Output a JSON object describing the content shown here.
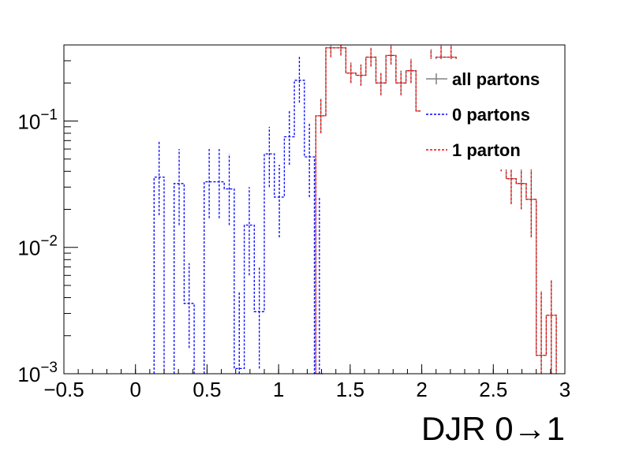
{
  "chart_data": {
    "type": "histogram-step",
    "xlabel": "DJR 0→1",
    "ylabel": "",
    "xlim": [
      -0.5,
      3.0
    ],
    "ylim": [
      0.001,
      0.4
    ],
    "yscale": "log",
    "xticks": [
      "−0.5",
      "0",
      "0.5",
      "1",
      "1.5",
      "2",
      "2.5",
      "3"
    ],
    "xtick_values": [
      -0.5,
      0,
      0.5,
      1,
      1.5,
      2,
      2.5,
      3
    ],
    "yticks": [
      {
        "value": 0.1,
        "base": "10",
        "exp": "−1"
      },
      {
        "value": 0.01,
        "base": "10",
        "exp": "−2"
      },
      {
        "value": 0.001,
        "base": "10",
        "exp": "−3"
      }
    ],
    "legend_position": "top-right",
    "bin_width": 0.07,
    "series": [
      {
        "name": "all partons",
        "color": "#808080",
        "dash": "",
        "bins": [
          [
            1.26,
            1.33,
            0.11,
            0.08,
            0.15
          ],
          [
            1.33,
            1.4,
            0.38,
            0.32,
            0.4
          ],
          [
            1.4,
            1.47,
            0.38,
            0.33,
            0.4
          ],
          [
            1.47,
            1.54,
            0.24,
            0.2,
            0.29
          ],
          [
            1.54,
            1.61,
            0.23,
            0.19,
            0.28
          ],
          [
            1.61,
            1.68,
            0.32,
            0.27,
            0.38
          ],
          [
            1.68,
            1.75,
            0.2,
            0.16,
            0.24
          ],
          [
            1.75,
            1.82,
            0.33,
            0.28,
            0.4
          ],
          [
            1.82,
            1.89,
            0.2,
            0.16,
            0.25
          ],
          [
            1.89,
            1.96,
            0.25,
            0.2,
            0.31
          ],
          [
            1.96,
            2.03,
            0.12,
            0.09,
            0.16
          ],
          [
            2.03,
            2.1,
            0.3,
            0.24,
            0.37
          ],
          [
            2.1,
            2.17,
            0.32,
            0.26,
            0.4
          ],
          [
            2.17,
            2.24,
            0.32,
            0.26,
            0.4
          ],
          [
            2.24,
            2.31,
            0.2,
            0.15,
            0.26
          ],
          [
            2.31,
            2.38,
            0.16,
            0.12,
            0.21
          ],
          [
            2.38,
            2.45,
            0.1,
            0.07,
            0.14
          ],
          [
            2.45,
            2.52,
            0.08,
            0.055,
            0.11
          ],
          [
            2.52,
            2.59,
            0.06,
            0.04,
            0.085
          ],
          [
            2.59,
            2.66,
            0.035,
            0.022,
            0.052
          ],
          [
            2.66,
            2.73,
            0.032,
            0.02,
            0.05
          ],
          [
            2.73,
            2.8,
            0.024,
            0.012,
            0.045
          ],
          [
            2.8,
            2.87,
            0.0014,
            0.001,
            0.0045
          ],
          [
            2.87,
            2.94,
            0.0029,
            0.001,
            0.0055
          ]
        ]
      },
      {
        "name": "0 partons",
        "color": "#0000ff",
        "dash": "3,2",
        "bins": [
          [
            0.13,
            0.2,
            0.036,
            0.018,
            0.07
          ],
          [
            0.27,
            0.34,
            0.032,
            0.015,
            0.06
          ],
          [
            0.34,
            0.41,
            0.0036,
            0.0016,
            0.0075
          ],
          [
            0.48,
            0.55,
            0.033,
            0.017,
            0.06
          ],
          [
            0.55,
            0.62,
            0.033,
            0.017,
            0.06
          ],
          [
            0.62,
            0.69,
            0.029,
            0.015,
            0.055
          ],
          [
            0.69,
            0.76,
            0.0011,
            0.001,
            0.0045
          ],
          [
            0.76,
            0.83,
            0.015,
            0.006,
            0.03
          ],
          [
            0.83,
            0.9,
            0.0031,
            0.0011,
            0.007
          ],
          [
            0.9,
            0.97,
            0.055,
            0.03,
            0.09
          ],
          [
            0.97,
            1.04,
            0.025,
            0.012,
            0.045
          ],
          [
            1.04,
            1.11,
            0.075,
            0.045,
            0.12
          ],
          [
            1.11,
            1.18,
            0.21,
            0.14,
            0.33
          ],
          [
            1.18,
            1.25,
            0.052,
            0.025,
            0.095
          ],
          [
            1.25,
            1.32,
            0.001,
            0.001,
            0.025
          ]
        ]
      },
      {
        "name": "1 parton",
        "color": "#ff0000",
        "dash": "3,2",
        "bins": [
          [
            1.26,
            1.33,
            0.11,
            0.08,
            0.15
          ],
          [
            1.33,
            1.4,
            0.38,
            0.32,
            0.4
          ],
          [
            1.4,
            1.47,
            0.38,
            0.33,
            0.4
          ],
          [
            1.47,
            1.54,
            0.24,
            0.2,
            0.29
          ],
          [
            1.54,
            1.61,
            0.23,
            0.19,
            0.28
          ],
          [
            1.61,
            1.68,
            0.32,
            0.27,
            0.38
          ],
          [
            1.68,
            1.75,
            0.2,
            0.16,
            0.24
          ],
          [
            1.75,
            1.82,
            0.33,
            0.28,
            0.4
          ],
          [
            1.82,
            1.89,
            0.2,
            0.16,
            0.25
          ],
          [
            1.89,
            1.96,
            0.25,
            0.2,
            0.31
          ],
          [
            1.96,
            2.03,
            0.12,
            0.09,
            0.16
          ],
          [
            2.03,
            2.1,
            0.3,
            0.24,
            0.37
          ],
          [
            2.1,
            2.17,
            0.32,
            0.26,
            0.4
          ],
          [
            2.17,
            2.24,
            0.32,
            0.26,
            0.4
          ],
          [
            2.24,
            2.31,
            0.2,
            0.15,
            0.26
          ],
          [
            2.31,
            2.38,
            0.16,
            0.12,
            0.21
          ],
          [
            2.38,
            2.45,
            0.1,
            0.07,
            0.14
          ],
          [
            2.45,
            2.52,
            0.08,
            0.055,
            0.11
          ],
          [
            2.52,
            2.59,
            0.06,
            0.04,
            0.085
          ],
          [
            2.59,
            2.66,
            0.035,
            0.022,
            0.052
          ],
          [
            2.66,
            2.73,
            0.032,
            0.02,
            0.05
          ],
          [
            2.73,
            2.8,
            0.024,
            0.012,
            0.045
          ],
          [
            2.8,
            2.87,
            0.0014,
            0.001,
            0.0045
          ],
          [
            2.87,
            2.94,
            0.0029,
            0.001,
            0.0055
          ]
        ]
      }
    ]
  }
}
